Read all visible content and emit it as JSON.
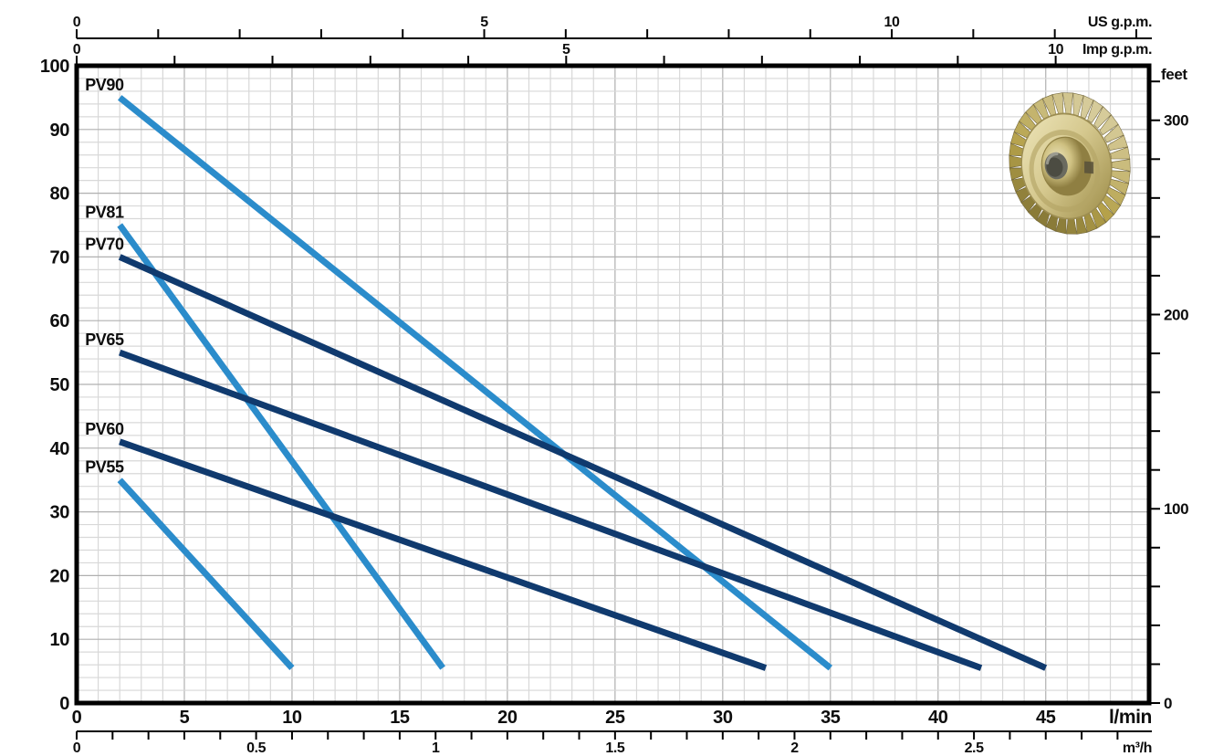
{
  "chart_data": {
    "type": "line",
    "title": "",
    "description": "Pump performance curves: head vs flow for PV-series pumps",
    "x_range_lmin": [
      0,
      49.8
    ],
    "y_range_m": [
      0,
      100
    ],
    "grid": {
      "on": true,
      "minor_x_step_lmin": 1,
      "major_x_step_lmin": 5,
      "minor_y_step_m": 2,
      "major_y_step_m": 10
    },
    "axes": {
      "top_primary": {
        "title": "US g.p.m.",
        "labels": [
          "0",
          "5",
          "10"
        ],
        "label_values": [
          0,
          5,
          10
        ],
        "lmin_per_unit": 3.785,
        "minor_step": 1,
        "minor_from": 0,
        "minor_to": 13
      },
      "top_secondary": {
        "title": "Imp g.p.m.",
        "labels": [
          "0",
          "5",
          "10"
        ],
        "label_values": [
          0,
          5,
          10
        ],
        "lmin_per_unit": 4.5461,
        "minor_step": 1,
        "minor_from": 0,
        "minor_to": 10
      },
      "bottom_primary": {
        "title": "l/min",
        "labels": [
          "0",
          "5",
          "10",
          "15",
          "20",
          "25",
          "30",
          "35",
          "40",
          "45"
        ],
        "label_values": [
          0,
          5,
          10,
          15,
          20,
          25,
          30,
          35,
          40,
          45
        ]
      },
      "bottom_secondary": {
        "title": "m³/h",
        "labels": [
          "0",
          "0.5",
          "1",
          "1.5",
          "2",
          "2.5"
        ],
        "label_values": [
          0,
          0.5,
          1,
          1.5,
          2,
          2.5
        ],
        "lmin_per_unit": 16.6667,
        "minor_step": 0.1,
        "minor_from": 0,
        "minor_to": 2.9
      },
      "left": {
        "title": "",
        "labels": [
          "100",
          "90",
          "80",
          "70",
          "60",
          "50",
          "40",
          "30",
          "20",
          "10",
          "0"
        ],
        "label_values": [
          100,
          90,
          80,
          70,
          60,
          50,
          40,
          30,
          20,
          10,
          0
        ]
      },
      "right": {
        "title": "feet",
        "labels": [
          "300",
          "200",
          "100",
          "0"
        ],
        "label_values": [
          300,
          200,
          100,
          0
        ],
        "m_per_unit": 0.3048,
        "minor_step": 20,
        "minor_from": 0,
        "minor_to": 320
      }
    },
    "series": [
      {
        "name": "PV90",
        "color_key": "light_blue",
        "points_lmin_m": [
          [
            2,
            95
          ],
          [
            35,
            5.5
          ]
        ]
      },
      {
        "name": "PV81",
        "color_key": "light_blue",
        "points_lmin_m": [
          [
            2,
            75
          ],
          [
            17,
            5.5
          ]
        ]
      },
      {
        "name": "PV70",
        "color_key": "navy",
        "points_lmin_m": [
          [
            2,
            70
          ],
          [
            45,
            5.5
          ]
        ]
      },
      {
        "name": "PV65",
        "color_key": "navy",
        "points_lmin_m": [
          [
            2,
            55
          ],
          [
            42,
            5.5
          ]
        ]
      },
      {
        "name": "PV60",
        "color_key": "navy",
        "points_lmin_m": [
          [
            2,
            41
          ],
          [
            32,
            5.5
          ]
        ]
      },
      {
        "name": "PV55",
        "color_key": "light_blue",
        "points_lmin_m": [
          [
            2,
            35
          ],
          [
            10,
            5.5
          ]
        ]
      }
    ],
    "colors": {
      "light_blue": "#2b8ccb",
      "navy": "#103a6e",
      "axis": "#000000",
      "grid_minor": "#d8d8d8",
      "grid_major": "#b0b0b0",
      "text": "#0d0d0d",
      "impeller_gold": "#cfc182",
      "impeller_gold_light": "#ece4ba",
      "impeller_gold_dark": "#8f7f42",
      "impeller_bore": "#4c4c42"
    },
    "legend": {
      "position": "inline-labels-on-curves"
    }
  }
}
